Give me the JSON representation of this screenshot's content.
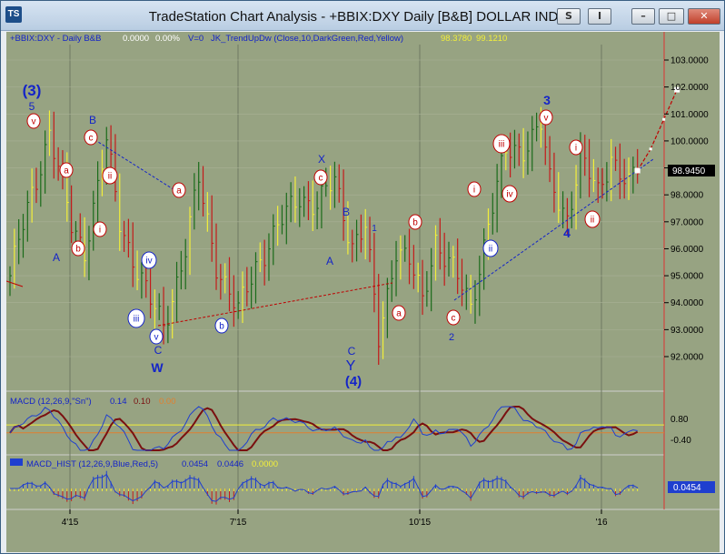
{
  "window": {
    "title": "TradeStation Chart Analysis - +BBIX:DXY Daily [B&B] DOLLAR INDEX",
    "buttons": {
      "s": "S",
      "i": "I",
      "min": "–",
      "max": "□",
      "close": "✕"
    }
  },
  "header": {
    "symbol": "+BBIX:DXY - Daily  B&B",
    "v1": "0.0000",
    "v2": "0.00%",
    "v3": "V=0",
    "indicator": "JK_TrendUpDw (Close,10,DarkGreen,Red,Yellow)",
    "val_a": "98.3780",
    "val_b": "99.1210"
  },
  "price_axis": {
    "ticks": [
      "103.0000",
      "102.0000",
      "101.0000",
      "100.0000",
      "99.0000",
      "98.0000",
      "97.0000",
      "96.0000",
      "95.0000",
      "94.0000",
      "93.0000",
      "92.0000"
    ],
    "last_price": "98.9450"
  },
  "date_axis": {
    "ticks": [
      "4'15",
      "7'15",
      "10'15",
      "'16"
    ]
  },
  "macd": {
    "label": "MACD (12,26,9,\"Sn\")",
    "v1": "0.14",
    "v2": "0.10",
    "v3": "0.00",
    "ticks": [
      "0.80",
      "-0.40"
    ]
  },
  "macd_hist": {
    "label": "MACD_HIST (12,26,9,Blue,Red,5)",
    "v1": "0.0454",
    "v2": "0.0446",
    "v3": "0.0000",
    "last_value": "0.0454"
  },
  "wave_labels": {
    "plain": [
      "(3)",
      "5",
      "A",
      "B",
      "C",
      "W",
      "X",
      "B",
      "A",
      "1",
      "C",
      "Y",
      "(4)",
      "3",
      "4",
      "2"
    ],
    "circled": [
      "v",
      "a",
      "b",
      "c",
      "ii",
      "i",
      "iii",
      "iv",
      "v",
      "a",
      "b",
      "c",
      "b",
      "a",
      "c",
      "i",
      "iii",
      "iv",
      "ii",
      "v",
      "i",
      "ii"
    ]
  },
  "colors": {
    "chart_bg": "#97a382",
    "up_bar": "#1a6b1a",
    "down_bar": "#c41a1a",
    "neutral_bar": "#f2ef3a",
    "wave_blue": "#1424c8",
    "wave_red": "#c00000",
    "macd_line": "#1f3fcf",
    "signal_line": "#7a1010"
  },
  "chart_data": {
    "type": "bar",
    "title": "+BBIX:DXY Daily DOLLAR INDEX",
    "x_ticks": [
      "4'15",
      "7'15",
      "10'15",
      "'16"
    ],
    "ylim": [
      91.2,
      103.6
    ],
    "closes_anchors": [
      [
        0,
        95.0
      ],
      [
        5,
        98.0
      ],
      [
        9,
        100.4
      ],
      [
        14,
        96.8
      ],
      [
        17,
        96.0
      ],
      [
        22,
        99.9
      ],
      [
        25,
        97.0
      ],
      [
        32,
        94.0
      ],
      [
        35,
        93.1
      ],
      [
        40,
        96.0
      ],
      [
        43,
        98.5
      ],
      [
        47,
        95.5
      ],
      [
        52,
        93.6
      ],
      [
        56,
        95.4
      ],
      [
        62,
        97.0
      ],
      [
        66,
        98.0
      ],
      [
        70,
        97.6
      ],
      [
        74,
        98.5
      ],
      [
        78,
        96.2
      ],
      [
        81,
        96.8
      ],
      [
        84,
        92.6
      ],
      [
        88,
        96.1
      ],
      [
        91,
        95.5
      ],
      [
        94,
        94.0
      ],
      [
        97,
        96.4
      ],
      [
        101,
        95.2
      ],
      [
        105,
        93.8
      ],
      [
        109,
        97.0
      ],
      [
        113,
        99.5
      ],
      [
        117,
        99.8
      ],
      [
        121,
        100.6
      ],
      [
        123,
        98.4
      ],
      [
        127,
        97.2
      ],
      [
        130,
        99.4
      ],
      [
        134,
        98.0
      ],
      [
        137,
        99.5
      ],
      [
        141,
        98.3
      ],
      [
        143,
        98.9
      ]
    ],
    "projection": [
      [
        143,
        98.9
      ],
      [
        146,
        99.7
      ],
      [
        149,
        100.8
      ],
      [
        152,
        101.9
      ]
    ],
    "last_price": 98.945,
    "macd_ylim": [
      -1.0,
      1.5
    ],
    "macd_ticks": [
      0.8,
      -0.4
    ],
    "macd_last": [
      0.14,
      0.1,
      0.0
    ],
    "hist_last": 0.0454
  }
}
